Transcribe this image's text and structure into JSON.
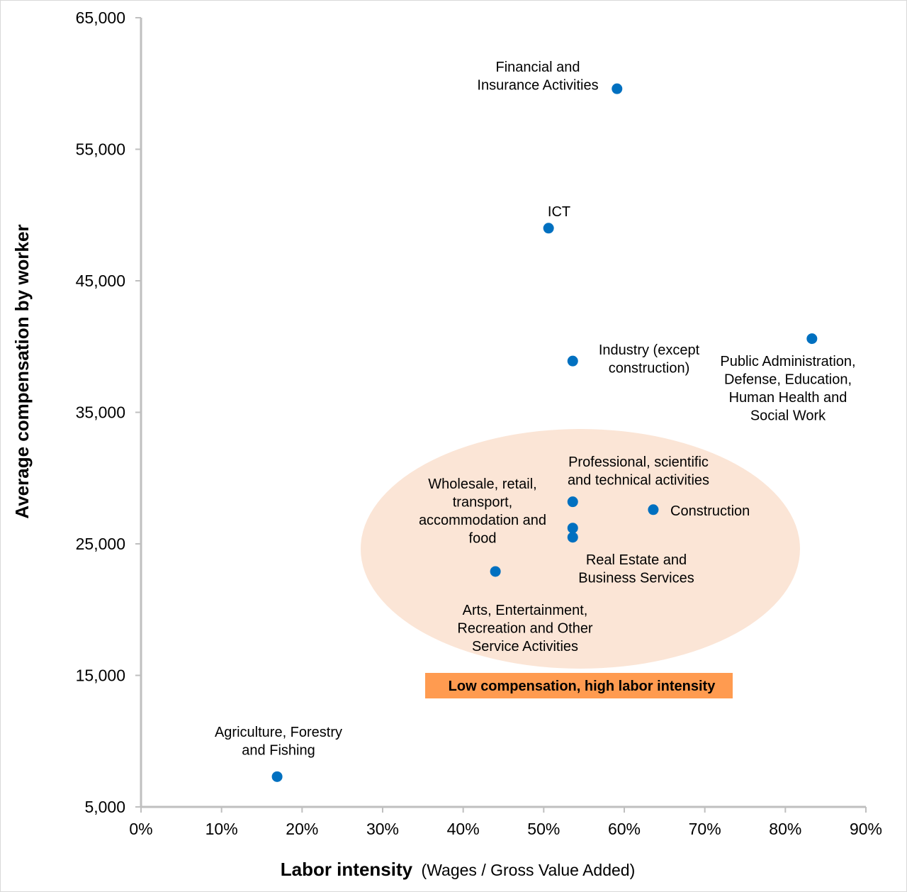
{
  "chart_data": {
    "type": "scatter",
    "title": "",
    "xlabel_bold": "Labor intensity",
    "xlabel_rest": "(Wages / Gross Value Added)",
    "ylabel": "Average compensation by worker",
    "xlim": [
      0,
      90
    ],
    "ylim": [
      5000,
      65000
    ],
    "x_ticks": [
      0,
      10,
      20,
      30,
      40,
      50,
      60,
      70,
      80,
      90
    ],
    "x_tick_labels": [
      "0%",
      "10%",
      "20%",
      "30%",
      "40%",
      "50%",
      "60%",
      "70%",
      "80%",
      "90%"
    ],
    "y_ticks": [
      5000,
      15000,
      25000,
      35000,
      45000,
      55000,
      65000
    ],
    "y_tick_labels": [
      "5,000",
      "15,000",
      "25,000",
      "35,000",
      "45,000",
      "55,000",
      "65,000"
    ],
    "grid": false,
    "marker_color": "#0070c0",
    "points": [
      {
        "name": "Financial and Insurance Activities",
        "label_lines": [
          "Financial and",
          "Insurance Activities"
        ],
        "x": 59.1,
        "y": 59600
      },
      {
        "name": "ICT",
        "label_lines": [
          "ICT"
        ],
        "x": 50.6,
        "y": 49000
      },
      {
        "name": "Public Administration, Defense, Education, Human Health and Social Work",
        "label_lines": [
          "Public Administration,",
          "Defense, Education,",
          "Human Health and",
          "Social Work"
        ],
        "x": 83.3,
        "y": 40600
      },
      {
        "name": "Industry (except construction)",
        "label_lines": [
          "Industry (except",
          "construction)"
        ],
        "x": 53.6,
        "y": 38900
      },
      {
        "name": "Professional, scientific and technical activities",
        "label_lines": [
          "Professional, scientific",
          "and technical activities"
        ],
        "x": 53.6,
        "y": 28200
      },
      {
        "name": "Construction",
        "label_lines": [
          "Construction"
        ],
        "x": 63.6,
        "y": 27600
      },
      {
        "name": "Wholesale, retail, transport, accommodation and food",
        "label_lines": [
          "Wholesale, retail,",
          "transport,",
          "accommodation and",
          "food"
        ],
        "x": 53.6,
        "y": 26200
      },
      {
        "name": "Real Estate and Business Services",
        "label_lines": [
          "Real Estate and",
          "Business Services"
        ],
        "x": 53.6,
        "y": 25500
      },
      {
        "name": "Arts, Entertainment, Recreation and Other Service Activities",
        "label_lines": [
          "Arts, Entertainment,",
          "Recreation and Other",
          "Service Activities"
        ],
        "x": 44.0,
        "y": 22900
      },
      {
        "name": "Agriculture, Forestry and Fishing",
        "label_lines": [
          "Agriculture, Forestry",
          "and Fishing"
        ],
        "x": 16.9,
        "y": 7300
      }
    ],
    "highlight_region": {
      "label": "Low compensation, high labor intensity",
      "fill_color": "#fbe5d6",
      "label_bg_color": "#ff9b50"
    }
  }
}
